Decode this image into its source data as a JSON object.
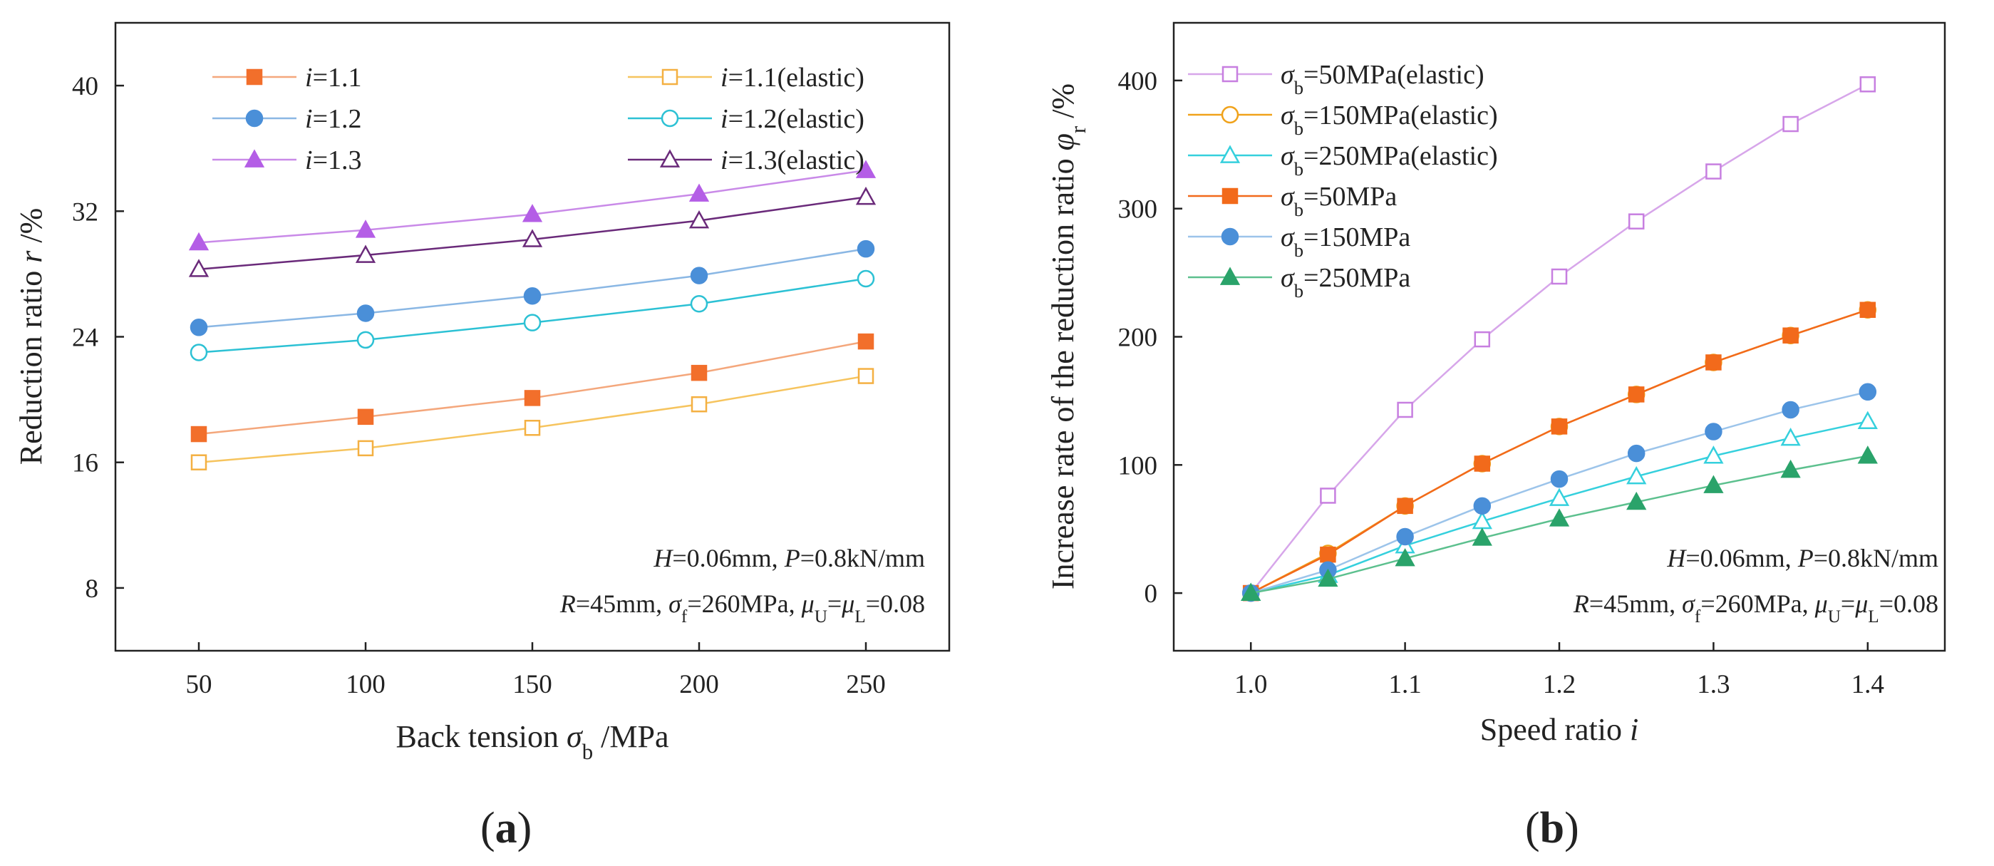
{
  "chart_data": [
    {
      "id": "a",
      "type": "line",
      "panel_label": "a",
      "xlabel": {
        "prefix": "Back tension ",
        "sym": "σ",
        "sub": "b",
        "suffix": " /MPa"
      },
      "ylabel": {
        "prefix": "Reduction ratio ",
        "sym": "r",
        "sub": "",
        "suffix": " /%"
      },
      "xlim": [
        25,
        275
      ],
      "ylim": [
        4,
        44
      ],
      "xticks": [
        50,
        100,
        150,
        200,
        250
      ],
      "xtick_labels": [
        "50",
        "100",
        "150",
        "200",
        "250"
      ],
      "yticks": [
        8,
        16,
        24,
        32,
        40
      ],
      "ytick_labels": [
        "8",
        "16",
        "24",
        "32",
        "40"
      ],
      "grid": false,
      "legend_position": "top-left",
      "legend_columns": 2,
      "x": [
        50,
        100,
        150,
        200,
        250
      ],
      "series": [
        {
          "key": "i11",
          "label": {
            "sym": "i",
            "sub": "",
            "text": "=1.1"
          },
          "color": "#f26f2b",
          "line": "#f4a77c",
          "marker": "square",
          "filled": true,
          "values": [
            17.8,
            18.9,
            20.1,
            21.7,
            23.7
          ]
        },
        {
          "key": "i11e",
          "label": {
            "sym": "i",
            "sub": "",
            "text": "=1.1(elastic)"
          },
          "color": "#f4b042",
          "line": "#f6c45e",
          "marker": "square",
          "filled": false,
          "values": [
            16.0,
            16.9,
            18.2,
            19.7,
            21.5
          ]
        },
        {
          "key": "i12",
          "label": {
            "sym": "i",
            "sub": "",
            "text": "=1.2"
          },
          "color": "#4a8fd8",
          "line": "#8ab7e4",
          "marker": "circle",
          "filled": true,
          "values": [
            24.6,
            25.5,
            26.6,
            27.9,
            29.6
          ]
        },
        {
          "key": "i12e",
          "label": {
            "sym": "i",
            "sub": "",
            "text": "=1.2(elastic)"
          },
          "color": "#2cc1d4",
          "line": "#2cc1d4",
          "marker": "circle",
          "filled": false,
          "values": [
            23.0,
            23.8,
            24.9,
            26.1,
            27.7
          ]
        },
        {
          "key": "i13",
          "label": {
            "sym": "i",
            "sub": "",
            "text": "=1.3"
          },
          "color": "#b45ee6",
          "line": "#c98ae8",
          "marker": "triangle",
          "filled": true,
          "values": [
            30.0,
            30.8,
            31.8,
            33.1,
            34.6
          ]
        },
        {
          "key": "i13e",
          "label": {
            "sym": "i",
            "sub": "",
            "text": "=1.3(elastic)"
          },
          "color": "#6a2a7a",
          "line": "#6a2a7a",
          "marker": "triangle",
          "filled": false,
          "values": [
            28.3,
            29.2,
            30.2,
            31.4,
            32.9
          ]
        }
      ],
      "annotations": [
        [
          {
            "t": "H",
            "i": true
          },
          {
            "t": "=0.06mm, "
          },
          {
            "t": "P",
            "i": true
          },
          {
            "t": "=0.8kN/mm"
          }
        ],
        [
          {
            "t": "R",
            "i": true
          },
          {
            "t": "=45mm, "
          },
          {
            "t": "σ",
            "i": true
          },
          {
            "t": "f",
            "sub": true
          },
          {
            "t": "=260MPa, "
          },
          {
            "t": "μ",
            "i": true
          },
          {
            "t": "U",
            "sub": true
          },
          {
            "t": "="
          },
          {
            "t": "μ",
            "i": true
          },
          {
            "t": "L",
            "sub": true
          },
          {
            "t": "=0.08"
          }
        ]
      ]
    },
    {
      "id": "b",
      "type": "line",
      "panel_label": "b",
      "xlabel": {
        "prefix": "Speed ratio ",
        "sym": "i",
        "sub": "",
        "suffix": ""
      },
      "ylabel": {
        "prefix": "Increase rate of the reduction ratio ",
        "sym": "φ",
        "sub": "r",
        "suffix": " /%"
      },
      "xlim": [
        0.95,
        1.45
      ],
      "ylim": [
        -45,
        445
      ],
      "xticks": [
        1.0,
        1.1,
        1.2,
        1.3,
        1.4
      ],
      "xtick_labels": [
        "1.0",
        "1.1",
        "1.2",
        "1.3",
        "1.4"
      ],
      "yticks": [
        0,
        100,
        200,
        300,
        400
      ],
      "ytick_labels": [
        "0",
        "100",
        "200",
        "300",
        "400"
      ],
      "grid": false,
      "legend_position": "top-left",
      "legend_columns": 1,
      "x": [
        1.0,
        1.05,
        1.1,
        1.15,
        1.2,
        1.25,
        1.3,
        1.35,
        1.4
      ],
      "series": [
        {
          "key": "s50e",
          "label": {
            "sym": "σ",
            "sub": "b",
            "text": "=50MPa(elastic)"
          },
          "color": "#c77fe0",
          "line": "#d7a6ea",
          "marker": "square",
          "filled": false,
          "values": [
            0,
            76,
            143,
            198,
            247,
            290,
            329,
            366,
            397
          ]
        },
        {
          "key": "s150e",
          "label": {
            "sym": "σ",
            "sub": "b",
            "text": "=150MPa(elastic)"
          },
          "color": "#f0a21a",
          "line": "#f0a21a",
          "marker": "circle",
          "filled": false,
          "values": [
            0,
            31,
            68,
            101,
            130,
            155,
            180,
            201,
            221
          ]
        },
        {
          "key": "s250e",
          "label": {
            "sym": "σ",
            "sub": "b",
            "text": "=250MPa(elastic)"
          },
          "color": "#35d0dd",
          "line": "#35d0dd",
          "marker": "triangle",
          "filled": false,
          "values": [
            0,
            14,
            37,
            56,
            74,
            91,
            107,
            121,
            134
          ]
        },
        {
          "key": "s50",
          "label": {
            "sym": "σ",
            "sub": "b",
            "text": "=50MPa"
          },
          "color": "#f26a1b",
          "line": "#f26a1b",
          "marker": "square",
          "filled": true,
          "values": [
            0,
            30,
            68,
            101,
            130,
            155,
            180,
            201,
            221
          ]
        },
        {
          "key": "s150",
          "label": {
            "sym": "σ",
            "sub": "b",
            "text": "=150MPa"
          },
          "color": "#4a8fd8",
          "line": "#9cc4ea",
          "marker": "circle",
          "filled": true,
          "values": [
            0,
            18,
            44,
            68,
            89,
            109,
            126,
            143,
            157
          ]
        },
        {
          "key": "s250",
          "label": {
            "sym": "σ",
            "sub": "b",
            "text": "=250MPa"
          },
          "color": "#2aa36a",
          "line": "#5cc08e",
          "marker": "triangle",
          "filled": true,
          "values": [
            0,
            11,
            27,
            43,
            58,
            71,
            84,
            96,
            107
          ]
        }
      ],
      "annotations": [
        [
          {
            "t": "H",
            "i": true
          },
          {
            "t": "=0.06mm, "
          },
          {
            "t": "P",
            "i": true
          },
          {
            "t": "=0.8kN/mm"
          }
        ],
        [
          {
            "t": "R",
            "i": true
          },
          {
            "t": "=45mm, "
          },
          {
            "t": "σ",
            "i": true
          },
          {
            "t": "f",
            "sub": true
          },
          {
            "t": "=260MPa, "
          },
          {
            "t": "μ",
            "i": true
          },
          {
            "t": "U",
            "sub": true
          },
          {
            "t": "="
          },
          {
            "t": "μ",
            "i": true
          },
          {
            "t": "L",
            "sub": true
          },
          {
            "t": "=0.08"
          }
        ]
      ]
    }
  ]
}
